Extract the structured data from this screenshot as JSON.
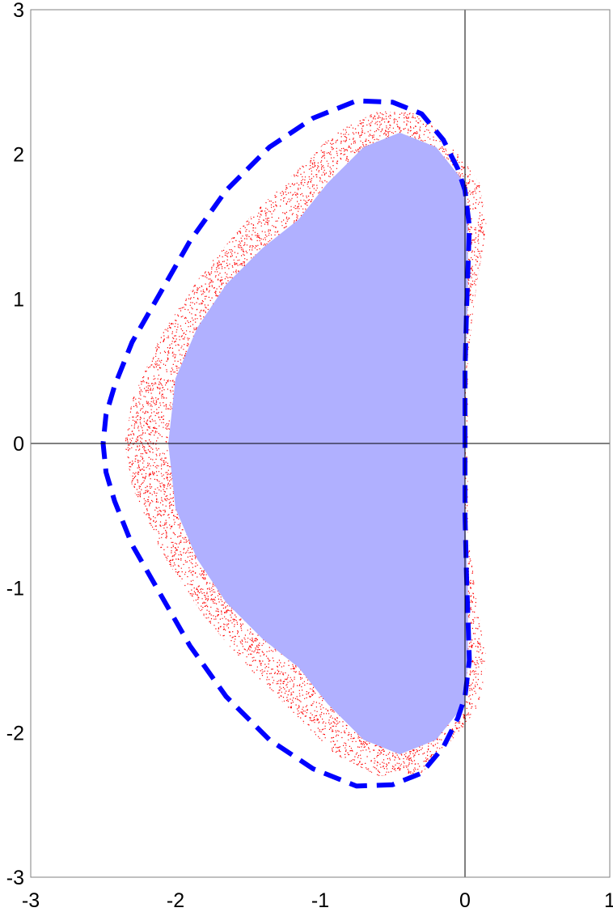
{
  "chart_data": {
    "type": "scatter",
    "title": "",
    "xlabel": "",
    "ylabel": "",
    "xlim": [
      -3,
      1
    ],
    "ylim": [
      -3,
      3
    ],
    "x_ticks": [
      -3,
      -2,
      -1,
      0,
      1
    ],
    "y_ticks": [
      -3,
      -2,
      -1,
      0,
      1,
      2,
      3
    ],
    "x_tick_labels": [
      "-3",
      "-2",
      "-1",
      "0",
      "1"
    ],
    "y_tick_labels": [
      "-3",
      "-2",
      "-1",
      "0",
      "1",
      "2",
      "3"
    ],
    "grid": false,
    "legend": "none",
    "zero_axes": true,
    "series": [
      {
        "type": "area",
        "color": "#b0b0ff",
        "points": [
          [
            0,
            0
          ],
          [
            0,
            0.5
          ],
          [
            0.02,
            1.0
          ],
          [
            0.02,
            1.5
          ],
          [
            0.0,
            1.8
          ],
          [
            -0.2,
            2.05
          ],
          [
            -0.45,
            2.15
          ],
          [
            -0.7,
            2.05
          ],
          [
            -0.95,
            1.8
          ],
          [
            -1.15,
            1.55
          ],
          [
            -1.4,
            1.35
          ],
          [
            -1.65,
            1.1
          ],
          [
            -1.85,
            0.8
          ],
          [
            -2.0,
            0.45
          ],
          [
            -2.05,
            0.0
          ],
          [
            -2.0,
            -0.45
          ],
          [
            -1.85,
            -0.8
          ],
          [
            -1.65,
            -1.1
          ],
          [
            -1.4,
            -1.35
          ],
          [
            -1.15,
            -1.55
          ],
          [
            -0.95,
            -1.8
          ],
          [
            -0.7,
            -2.05
          ],
          [
            -0.45,
            -2.15
          ],
          [
            -0.2,
            -2.05
          ],
          [
            0.0,
            -1.8
          ],
          [
            0.02,
            -1.5
          ],
          [
            0.02,
            -1.0
          ],
          [
            0,
            -0.5
          ]
        ]
      },
      {
        "type": "scatter",
        "color": "#ff0000",
        "band_outer": [
          [
            0.02,
            0.6
          ],
          [
            0.08,
            1.1
          ],
          [
            0.15,
            1.5
          ],
          [
            0.1,
            1.8
          ],
          [
            0.0,
            1.95
          ],
          [
            -0.3,
            2.28
          ],
          [
            -0.6,
            2.3
          ],
          [
            -0.9,
            2.15
          ],
          [
            -1.2,
            1.85
          ],
          [
            -1.5,
            1.55
          ],
          [
            -1.8,
            1.2
          ],
          [
            -2.1,
            0.75
          ],
          [
            -2.3,
            0.3
          ],
          [
            -2.35,
            0.0
          ],
          [
            -2.3,
            -0.3
          ],
          [
            -2.1,
            -0.75
          ],
          [
            -1.8,
            -1.2
          ],
          [
            -1.5,
            -1.55
          ],
          [
            -1.2,
            -1.85
          ],
          [
            -0.9,
            -2.15
          ],
          [
            -0.6,
            -2.3
          ],
          [
            -0.3,
            -2.28
          ],
          [
            0.0,
            -1.95
          ],
          [
            0.1,
            -1.8
          ],
          [
            0.15,
            -1.5
          ],
          [
            0.08,
            -1.1
          ],
          [
            0.02,
            -0.6
          ]
        ]
      },
      {
        "type": "line",
        "style": "dashed",
        "color": "#0000ff",
        "points": [
          [
            0,
            0
          ],
          [
            0.0,
            0.5
          ],
          [
            0.01,
            0.9
          ],
          [
            0.02,
            1.2
          ],
          [
            0.03,
            1.5
          ],
          [
            0.0,
            1.75
          ],
          [
            -0.05,
            1.9
          ],
          [
            -0.15,
            2.1
          ],
          [
            -0.3,
            2.28
          ],
          [
            -0.5,
            2.36
          ],
          [
            -0.75,
            2.37
          ],
          [
            -1.05,
            2.25
          ],
          [
            -1.35,
            2.05
          ],
          [
            -1.65,
            1.75
          ],
          [
            -1.9,
            1.4
          ],
          [
            -2.1,
            1.05
          ],
          [
            -2.3,
            0.7
          ],
          [
            -2.42,
            0.4
          ],
          [
            -2.48,
            0.2
          ],
          [
            -2.5,
            0.0
          ],
          [
            -2.48,
            -0.2
          ],
          [
            -2.42,
            -0.4
          ],
          [
            -2.3,
            -0.7
          ],
          [
            -2.1,
            -1.05
          ],
          [
            -1.9,
            -1.4
          ],
          [
            -1.65,
            -1.75
          ],
          [
            -1.35,
            -2.05
          ],
          [
            -1.05,
            -2.25
          ],
          [
            -0.75,
            -2.37
          ],
          [
            -0.5,
            -2.36
          ],
          [
            -0.3,
            -2.28
          ],
          [
            -0.15,
            -2.1
          ],
          [
            -0.05,
            -1.9
          ],
          [
            0.0,
            -1.75
          ],
          [
            0.03,
            -1.5
          ],
          [
            0.02,
            -1.2
          ],
          [
            0.01,
            -0.9
          ],
          [
            0.0,
            -0.5
          ],
          [
            0,
            0
          ]
        ]
      }
    ]
  }
}
